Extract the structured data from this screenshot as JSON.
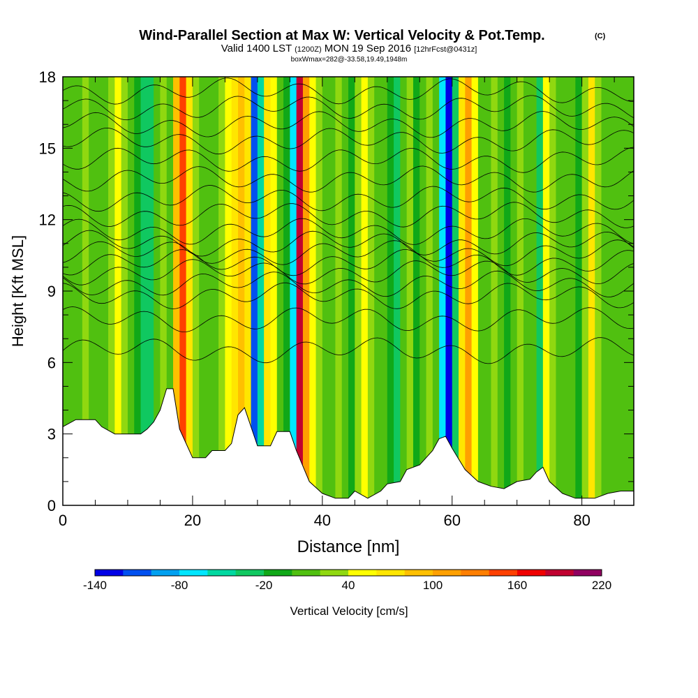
{
  "chart_data": {
    "type": "heatmap",
    "title": "Wind-Parallel Section at Max W: Vertical Velocity & Pot.Temp.",
    "title_mark": "(C)",
    "subtitle_main": "Valid 1400 LST",
    "subtitle_z": "(1200Z)",
    "subtitle_date": "MON 19 Sep 2016",
    "subtitle_fcst": "[12hrFcst@0431z]",
    "subtitle2": "boxWmax=282@-33.58,19.49,1948m",
    "xlabel": "Distance [nm]",
    "ylabel": "Height [Kft MSL]",
    "xlim": [
      0,
      88
    ],
    "ylim": [
      0,
      18
    ],
    "xticks": [
      0,
      20,
      40,
      60,
      80
    ],
    "yticks": [
      0,
      3,
      6,
      9,
      12,
      15,
      18
    ],
    "colorbar": {
      "label": "Vertical Velocity [cm/s]",
      "levels": [
        -140,
        -120,
        -100,
        -80,
        -60,
        -40,
        -20,
        0,
        20,
        40,
        60,
        80,
        100,
        120,
        140,
        160,
        180,
        200,
        220
      ],
      "tick_labels": [
        "-140",
        "-80",
        "-20",
        "40",
        "100",
        "160",
        "220"
      ],
      "colors": [
        "#0000e6",
        "#0050f0",
        "#00a0f0",
        "#00e6ff",
        "#00d8a0",
        "#10c860",
        "#10a818",
        "#50c010",
        "#90d810",
        "#ffff00",
        "#ffe600",
        "#ffc000",
        "#ffa000",
        "#ff7f00",
        "#ff4000",
        "#f00000",
        "#c00030",
        "#900060"
      ]
    },
    "columns": [
      {
        "x": 0,
        "w": 10
      },
      {
        "x": 1,
        "w": 15
      },
      {
        "x": 2,
        "w": 5
      },
      {
        "x": 3,
        "w": 20
      },
      {
        "x": 4,
        "w": 5
      },
      {
        "x": 5,
        "w": 0
      },
      {
        "x": 6,
        "w": 15
      },
      {
        "x": 7,
        "w": 25
      },
      {
        "x": 8,
        "w": 40
      },
      {
        "x": 9,
        "w": 30
      },
      {
        "x": 10,
        "w": 10
      },
      {
        "x": 11,
        "w": -5
      },
      {
        "x": 12,
        "w": -40
      },
      {
        "x": 13,
        "w": -30
      },
      {
        "x": 14,
        "w": 5
      },
      {
        "x": 15,
        "w": 25
      },
      {
        "x": 16,
        "w": 5
      },
      {
        "x": 17,
        "w": 80
      },
      {
        "x": 18,
        "w": 140
      },
      {
        "x": 19,
        "w": 60
      },
      {
        "x": 20,
        "w": 25
      },
      {
        "x": 21,
        "w": 5
      },
      {
        "x": 22,
        "w": 10
      },
      {
        "x": 23,
        "w": 15
      },
      {
        "x": 24,
        "w": 30
      },
      {
        "x": 25,
        "w": 45
      },
      {
        "x": 26,
        "w": 60
      },
      {
        "x": 27,
        "w": 90
      },
      {
        "x": 28,
        "w": 60
      },
      {
        "x": 29,
        "w": -120
      },
      {
        "x": 30,
        "w": -60
      },
      {
        "x": 31,
        "w": 60
      },
      {
        "x": 32,
        "w": 40
      },
      {
        "x": 33,
        "w": 10
      },
      {
        "x": 34,
        "w": -20
      },
      {
        "x": 35,
        "w": -70
      },
      {
        "x": 36,
        "w": 190
      },
      {
        "x": 37,
        "w": 100
      },
      {
        "x": 38,
        "w": 50
      },
      {
        "x": 39,
        "w": 30
      },
      {
        "x": 40,
        "w": 15
      },
      {
        "x": 41,
        "w": 5
      },
      {
        "x": 42,
        "w": 25
      },
      {
        "x": 43,
        "w": 5
      },
      {
        "x": 44,
        "w": -10
      },
      {
        "x": 45,
        "w": 20
      },
      {
        "x": 46,
        "w": 45
      },
      {
        "x": 47,
        "w": 30
      },
      {
        "x": 48,
        "w": 10
      },
      {
        "x": 49,
        "w": 0
      },
      {
        "x": 50,
        "w": -15
      },
      {
        "x": 51,
        "w": -30
      },
      {
        "x": 52,
        "w": 0
      },
      {
        "x": 53,
        "w": 20
      },
      {
        "x": 54,
        "w": -15
      },
      {
        "x": 55,
        "w": 10
      },
      {
        "x": 56,
        "w": 35
      },
      {
        "x": 57,
        "w": 15
      },
      {
        "x": 58,
        "w": -70
      },
      {
        "x": 59,
        "w": -130
      },
      {
        "x": 60,
        "w": -40
      },
      {
        "x": 61,
        "w": 60
      },
      {
        "x": 62,
        "w": 110
      },
      {
        "x": 63,
        "w": 50
      },
      {
        "x": 64,
        "w": 15
      },
      {
        "x": 65,
        "w": 5
      },
      {
        "x": 66,
        "w": 20
      },
      {
        "x": 67,
        "w": 0
      },
      {
        "x": 68,
        "w": -20
      },
      {
        "x": 69,
        "w": 10
      },
      {
        "x": 70,
        "w": 20
      },
      {
        "x": 71,
        "w": 5
      },
      {
        "x": 72,
        "w": 0
      },
      {
        "x": 73,
        "w": -40
      },
      {
        "x": 74,
        "w": 50
      },
      {
        "x": 75,
        "w": 20
      },
      {
        "x": 76,
        "w": 5
      },
      {
        "x": 77,
        "w": 0
      },
      {
        "x": 78,
        "w": 10
      },
      {
        "x": 79,
        "w": -5
      },
      {
        "x": 80,
        "w": 25
      },
      {
        "x": 81,
        "w": 70
      },
      {
        "x": 82,
        "w": 30
      },
      {
        "x": 83,
        "w": 10
      },
      {
        "x": 84,
        "w": 0
      },
      {
        "x": 85,
        "w": 5
      },
      {
        "x": 86,
        "w": 15
      },
      {
        "x": 87,
        "w": 10
      }
    ],
    "terrain_kft": [
      [
        0,
        3.3
      ],
      [
        2,
        3.6
      ],
      [
        5,
        3.6
      ],
      [
        6,
        3.3
      ],
      [
        8,
        3.0
      ],
      [
        12,
        3.0
      ],
      [
        13,
        3.2
      ],
      [
        14,
        3.5
      ],
      [
        15,
        4.0
      ],
      [
        16,
        4.9
      ],
      [
        17,
        4.9
      ],
      [
        18,
        3.2
      ],
      [
        20,
        2.0
      ],
      [
        22,
        2.0
      ],
      [
        23,
        2.3
      ],
      [
        25,
        2.3
      ],
      [
        26,
        2.6
      ],
      [
        27,
        3.8
      ],
      [
        28,
        4.1
      ],
      [
        29,
        3.3
      ],
      [
        30,
        2.5
      ],
      [
        32,
        2.5
      ],
      [
        33,
        3.1
      ],
      [
        35,
        3.1
      ],
      [
        36,
        2.3
      ],
      [
        38,
        1.0
      ],
      [
        40,
        0.5
      ],
      [
        42,
        0.3
      ],
      [
        44,
        0.3
      ],
      [
        45,
        0.6
      ],
      [
        47,
        0.3
      ],
      [
        49,
        0.6
      ],
      [
        50,
        0.9
      ],
      [
        52,
        1.0
      ],
      [
        53,
        1.5
      ],
      [
        55,
        1.7
      ],
      [
        57,
        2.3
      ],
      [
        58,
        2.8
      ],
      [
        59,
        2.9
      ],
      [
        60,
        2.4
      ],
      [
        62,
        1.5
      ],
      [
        64,
        1.0
      ],
      [
        66,
        0.8
      ],
      [
        68,
        0.7
      ],
      [
        70,
        1.0
      ],
      [
        72,
        1.1
      ],
      [
        73,
        1.4
      ],
      [
        74,
        1.6
      ],
      [
        75,
        1.0
      ],
      [
        77,
        0.5
      ],
      [
        79,
        0.3
      ],
      [
        82,
        0.3
      ],
      [
        84,
        0.5
      ],
      [
        86,
        0.6
      ],
      [
        88,
        0.6
      ]
    ],
    "theta_levels_kft": [
      6.5,
      7.8,
      8.8,
      9.3,
      9.8,
      10.2,
      10.6,
      11.0,
      11.5,
      12.2,
      12.9,
      13.7,
      14.5,
      15.3,
      16.0,
      16.7,
      17.4
    ]
  }
}
